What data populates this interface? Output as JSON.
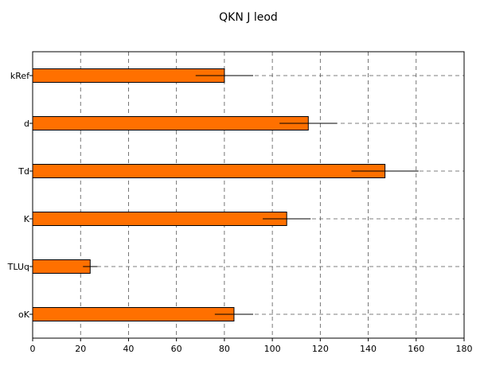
{
  "chart_data": {
    "type": "bar",
    "orientation": "horizontal",
    "title": "QKN J leod",
    "xlabel": "",
    "ylabel": "",
    "categories": [
      "kRef",
      "d",
      "Td",
      "K",
      "TLUq",
      "oK"
    ],
    "values": [
      80,
      115,
      147,
      106,
      24,
      84
    ],
    "error": [
      12,
      12,
      14,
      10,
      3,
      8
    ],
    "xlim": [
      0,
      180
    ],
    "xticks": [
      0,
      20,
      40,
      60,
      80,
      100,
      120,
      140,
      160,
      180
    ],
    "grid": true,
    "legend": "none",
    "colors": {
      "bar": "#ff7000",
      "bar_edge": "#000000",
      "grid": "#555555",
      "error": "#000000"
    }
  }
}
